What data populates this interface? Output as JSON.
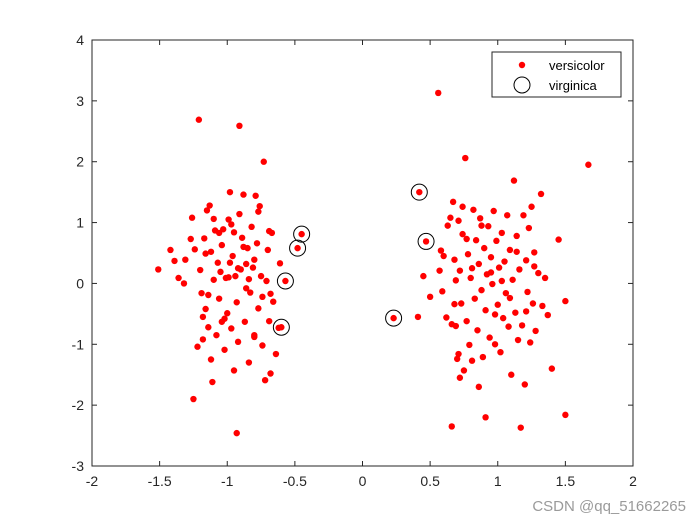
{
  "chart_data": {
    "type": "scatter",
    "title": "",
    "xlabel": "",
    "ylabel": "",
    "xlim": [
      -2,
      2
    ],
    "ylim": [
      -3,
      4
    ],
    "xticks": [
      "-2",
      "-1.5",
      "-1",
      "-0.5",
      "0",
      "0.5",
      "1",
      "1.5",
      "2"
    ],
    "yticks": [
      "-3",
      "-2",
      "-1",
      "0",
      "1",
      "2",
      "3",
      "4"
    ],
    "grid": false,
    "legend_position": "top-right",
    "series": [
      {
        "name": "versicolor",
        "marker": "filled-dot",
        "color": "#ff0000",
        "points": [
          [
            -1.51,
            0.23
          ],
          [
            -1.42,
            0.55
          ],
          [
            -1.39,
            0.37
          ],
          [
            -1.36,
            0.09
          ],
          [
            -1.31,
            0.39
          ],
          [
            -1.27,
            0.73
          ],
          [
            -1.26,
            1.08
          ],
          [
            -1.25,
            -1.9
          ],
          [
            -1.24,
            0.56
          ],
          [
            -1.21,
            2.69
          ],
          [
            -1.2,
            0.22
          ],
          [
            -1.19,
            -0.16
          ],
          [
            -1.18,
            -0.55
          ],
          [
            -1.17,
            0.74
          ],
          [
            -1.16,
            -0.42
          ],
          [
            -1.15,
            1.2
          ],
          [
            -1.14,
            -0.72
          ],
          [
            -1.13,
            1.28
          ],
          [
            -1.12,
            0.52
          ],
          [
            -1.12,
            -1.25
          ],
          [
            -1.11,
            -1.62
          ],
          [
            -1.1,
            0.06
          ],
          [
            -1.09,
            0.87
          ],
          [
            -1.08,
            -0.85
          ],
          [
            -1.07,
            0.34
          ],
          [
            -1.06,
            -0.25
          ],
          [
            -1.05,
            0.19
          ],
          [
            -1.04,
            0.63
          ],
          [
            -1.03,
            0.89
          ],
          [
            -1.02,
            -1.09
          ],
          [
            -1.01,
            0.09
          ],
          [
            -1.0,
            -0.49
          ],
          [
            -0.99,
            1.05
          ],
          [
            -0.98,
            0.34
          ],
          [
            -0.97,
            -0.74
          ],
          [
            -0.96,
            0.45
          ],
          [
            -0.95,
            0.84
          ],
          [
            -0.94,
            0.12
          ],
          [
            -0.93,
            -0.31
          ],
          [
            -0.92,
            -0.96
          ],
          [
            -0.91,
            2.59
          ],
          [
            -0.91,
            1.14
          ],
          [
            -0.9,
            0.23
          ],
          [
            -0.89,
            0.75
          ],
          [
            -0.88,
            1.46
          ],
          [
            -0.87,
            -0.63
          ],
          [
            -0.86,
            0.32
          ],
          [
            -0.85,
            0.58
          ],
          [
            -0.84,
            -1.3
          ],
          [
            -0.84,
            0.07
          ],
          [
            -0.83,
            -0.15
          ],
          [
            -0.82,
            0.93
          ],
          [
            -0.81,
            0.26
          ],
          [
            -0.8,
            -0.85
          ],
          [
            -0.79,
            1.44
          ],
          [
            -0.78,
            0.66
          ],
          [
            -0.77,
            -0.41
          ],
          [
            -0.76,
            1.27
          ],
          [
            -0.75,
            0.12
          ],
          [
            -0.74,
            -0.22
          ],
          [
            -0.73,
            2.0
          ],
          [
            -0.72,
            -1.59
          ],
          [
            -0.71,
            0.04
          ],
          [
            -0.7,
            0.55
          ],
          [
            -0.69,
            -0.62
          ],
          [
            -0.68,
            -1.48
          ],
          [
            -0.67,
            0.83
          ],
          [
            -0.66,
            -0.3
          ],
          [
            -0.64,
            -1.16
          ],
          [
            -0.62,
            -0.73
          ],
          [
            -0.93,
            -2.46
          ],
          [
            -1.04,
            -0.63
          ],
          [
            -1.22,
            -1.04
          ],
          [
            -0.98,
            1.5
          ],
          [
            -1.1,
            1.06
          ],
          [
            -0.86,
            -0.08
          ],
          [
            -1.32,
            0.0
          ],
          [
            -0.95,
            -1.43
          ],
          [
            -1.18,
            -0.92
          ],
          [
            -0.99,
            0.1
          ],
          [
            -0.61,
            0.33
          ],
          [
            -0.92,
            0.25
          ],
          [
            -0.8,
            -0.88
          ],
          [
            -0.88,
            0.6
          ],
          [
            -1.06,
            0.83
          ],
          [
            -0.74,
            -1.02
          ],
          [
            -0.77,
            1.18
          ],
          [
            -1.14,
            -0.19
          ],
          [
            -0.68,
            -0.17
          ],
          [
            -0.69,
            0.86
          ],
          [
            -1.16,
            0.49
          ],
          [
            -1.02,
            -0.58
          ],
          [
            -0.97,
            0.97
          ],
          [
            -0.8,
            0.39
          ],
          [
            -0.57,
            0.04
          ],
          [
            -0.48,
            0.58
          ],
          [
            -0.45,
            0.81
          ],
          [
            -0.6,
            -0.72
          ],
          [
            0.23,
            -0.57
          ],
          [
            0.42,
            1.5
          ],
          [
            0.47,
            0.69
          ],
          [
            0.41,
            -0.55
          ],
          [
            0.45,
            0.12
          ],
          [
            0.5,
            -0.22
          ],
          [
            0.56,
            3.13
          ],
          [
            0.58,
            0.54
          ],
          [
            0.59,
            -0.13
          ],
          [
            0.6,
            0.45
          ],
          [
            0.62,
            -0.56
          ],
          [
            0.65,
            1.08
          ],
          [
            0.66,
            -2.35
          ],
          [
            0.67,
            1.34
          ],
          [
            0.68,
            0.39
          ],
          [
            0.69,
            -0.7
          ],
          [
            0.7,
            -1.24
          ],
          [
            0.71,
            1.03
          ],
          [
            0.72,
            0.21
          ],
          [
            0.72,
            -1.55
          ],
          [
            0.73,
            -0.33
          ],
          [
            0.74,
            0.81
          ],
          [
            0.75,
            -1.43
          ],
          [
            0.76,
            2.06
          ],
          [
            0.77,
            -0.62
          ],
          [
            0.78,
            0.48
          ],
          [
            0.79,
            -1.01
          ],
          [
            0.8,
            0.09
          ],
          [
            0.81,
            -1.27
          ],
          [
            0.82,
            1.21
          ],
          [
            0.83,
            -0.25
          ],
          [
            0.84,
            0.71
          ],
          [
            0.85,
            -0.77
          ],
          [
            0.86,
            0.32
          ],
          [
            0.87,
            1.07
          ],
          [
            0.88,
            -0.11
          ],
          [
            0.89,
            -1.21
          ],
          [
            0.9,
            0.58
          ],
          [
            0.91,
            -0.44
          ],
          [
            0.91,
            -2.2
          ],
          [
            0.92,
            0.15
          ],
          [
            0.93,
            0.94
          ],
          [
            0.94,
            -0.89
          ],
          [
            0.95,
            0.43
          ],
          [
            0.96,
            -0.01
          ],
          [
            0.97,
            1.19
          ],
          [
            0.98,
            -1.0
          ],
          [
            0.99,
            0.7
          ],
          [
            1.0,
            -0.35
          ],
          [
            1.01,
            0.26
          ],
          [
            1.02,
            -1.13
          ],
          [
            1.03,
            0.83
          ],
          [
            1.04,
            -0.57
          ],
          [
            1.05,
            0.36
          ],
          [
            1.06,
            -0.16
          ],
          [
            1.07,
            1.12
          ],
          [
            1.08,
            -0.71
          ],
          [
            1.09,
            0.55
          ],
          [
            1.1,
            -1.5
          ],
          [
            1.11,
            0.06
          ],
          [
            1.12,
            1.69
          ],
          [
            1.13,
            -0.48
          ],
          [
            1.14,
            0.78
          ],
          [
            1.15,
            -0.93
          ],
          [
            1.16,
            0.23
          ],
          [
            1.17,
            -2.37
          ],
          [
            1.18,
            -0.69
          ],
          [
            1.19,
            1.12
          ],
          [
            1.2,
            -1.66
          ],
          [
            1.21,
            0.38
          ],
          [
            1.22,
            -0.14
          ],
          [
            1.23,
            0.91
          ],
          [
            1.24,
            -0.97
          ],
          [
            1.25,
            1.26
          ],
          [
            1.26,
            -0.33
          ],
          [
            1.27,
            0.51
          ],
          [
            1.28,
            -0.78
          ],
          [
            1.3,
            0.17
          ],
          [
            1.32,
            1.47
          ],
          [
            1.33,
            -0.37
          ],
          [
            1.35,
            0.09
          ],
          [
            1.37,
            -0.52
          ],
          [
            1.4,
            -1.4
          ],
          [
            1.45,
            0.72
          ],
          [
            1.5,
            -0.29
          ],
          [
            1.5,
            -2.16
          ],
          [
            1.67,
            1.95
          ],
          [
            0.63,
            0.95
          ],
          [
            0.66,
            -0.67
          ],
          [
            0.68,
            -0.34
          ],
          [
            0.57,
            0.21
          ],
          [
            0.86,
            -1.7
          ],
          [
            1.03,
            0.04
          ],
          [
            0.74,
            1.26
          ],
          [
            1.09,
            -0.24
          ],
          [
            0.95,
            0.18
          ],
          [
            0.77,
            0.73
          ],
          [
            1.21,
            -0.46
          ],
          [
            0.69,
            0.05
          ],
          [
            0.88,
            0.95
          ],
          [
            1.14,
            0.52
          ],
          [
            0.98,
            -0.51
          ],
          [
            0.81,
            0.25
          ],
          [
            1.27,
            0.28
          ],
          [
            0.71,
            -1.16
          ]
        ]
      },
      {
        "name": "virginica",
        "marker": "open-circle",
        "color": "#000000",
        "points": [
          [
            -0.45,
            0.81
          ],
          [
            -0.48,
            0.58
          ],
          [
            -0.57,
            0.04
          ],
          [
            -0.6,
            -0.72
          ],
          [
            0.23,
            -0.57
          ],
          [
            0.42,
            1.5
          ],
          [
            0.47,
            0.69
          ]
        ]
      }
    ]
  },
  "watermark": "CSDN @qq_51662265"
}
